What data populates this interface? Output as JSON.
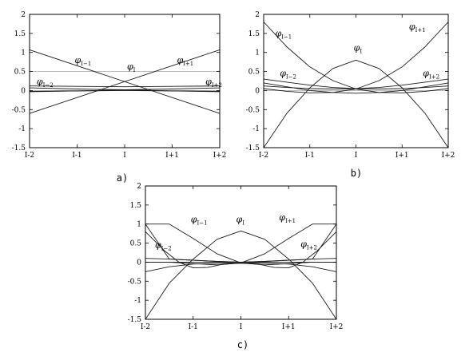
{
  "chart_data": [
    {
      "type": "line",
      "panel": "a",
      "caption": "a)",
      "x_ticks": [
        "I-2",
        "I-1",
        "I",
        "I+1",
        "I+2"
      ],
      "y_ticks": [
        "2",
        "1.5",
        "1",
        "0.5",
        "0",
        "-0.5",
        "-1",
        "-1.5"
      ],
      "xlim": [
        -2,
        2
      ],
      "ylim": [
        -1.5,
        2
      ],
      "reference_lines": [
        0,
        0.5
      ],
      "series": [
        {
          "name": "I-1",
          "x": [
            -2,
            2
          ],
          "y": [
            1.07,
            -0.6
          ]
        },
        {
          "name": "I+1",
          "x": [
            -2,
            2
          ],
          "y": [
            -0.6,
            1.07
          ]
        },
        {
          "name": "I",
          "x": [
            -2,
            -1,
            0,
            1,
            2
          ],
          "y": [
            -0.02,
            -0.01,
            0.0,
            -0.01,
            -0.02
          ]
        },
        {
          "name": "I-2",
          "x": [
            -2,
            -1,
            0,
            1,
            2
          ],
          "y": [
            0.07,
            0.04,
            0.02,
            -0.01,
            -0.03
          ]
        },
        {
          "name": "I+2",
          "x": [
            -2,
            -1,
            0,
            1,
            2
          ],
          "y": [
            -0.03,
            -0.01,
            0.02,
            0.04,
            0.07
          ]
        },
        {
          "name": "",
          "x": [
            -2,
            -1,
            0,
            1,
            2
          ],
          "y": [
            0.12,
            0.11,
            0.1,
            0.11,
            0.12
          ]
        }
      ],
      "labels": [
        {
          "text": "φ",
          "sub": "I−1",
          "x": -1.05,
          "y": 0.72
        },
        {
          "text": "φ",
          "sub": "I",
          "x": 0.05,
          "y": 0.55
        },
        {
          "text": "φ",
          "sub": "I+1",
          "x": 1.1,
          "y": 0.72
        },
        {
          "text": "φ",
          "sub": "I−2",
          "x": -1.85,
          "y": 0.16
        },
        {
          "text": "φ",
          "sub": "I+2",
          "x": 1.7,
          "y": 0.16
        }
      ]
    },
    {
      "type": "line",
      "panel": "b",
      "caption": "b)",
      "x_ticks": [
        "I-2",
        "I-1",
        "I",
        "I+1",
        "I+2"
      ],
      "y_ticks": [
        "2",
        "1.5",
        "1",
        "0.5",
        "0",
        "-0.5",
        "-1",
        "-1.5"
      ],
      "xlim": [
        -2,
        2
      ],
      "ylim": [
        -1.5,
        2
      ],
      "reference_lines": [
        0
      ],
      "series": [
        {
          "name": "I",
          "x": [
            -2,
            -1.5,
            -1,
            -0.5,
            0,
            0.5,
            1,
            1.5,
            2
          ],
          "y": [
            -1.5,
            -0.6,
            0.07,
            0.58,
            0.8,
            0.58,
            0.07,
            -0.6,
            -1.5
          ]
        },
        {
          "name": "I-1",
          "x": [
            -2,
            -1.5,
            -1,
            -0.5,
            0,
            0.5,
            1,
            1.5,
            2
          ],
          "y": [
            1.8,
            1.15,
            0.62,
            0.26,
            0.04,
            -0.05,
            -0.06,
            -0.02,
            0.05
          ]
        },
        {
          "name": "I+1",
          "x": [
            -2,
            -1.5,
            -1,
            -0.5,
            0,
            0.5,
            1,
            1.5,
            2
          ],
          "y": [
            0.05,
            -0.02,
            -0.06,
            -0.05,
            0.04,
            0.26,
            0.62,
            1.15,
            1.8
          ]
        },
        {
          "name": "I-2",
          "x": [
            -2,
            -1.5,
            -1,
            -0.5,
            0,
            0.5,
            1,
            1.5,
            2
          ],
          "y": [
            0.3,
            0.22,
            0.14,
            0.08,
            0.05,
            0.04,
            0.05,
            0.08,
            0.12
          ]
        },
        {
          "name": "I+2",
          "x": [
            -2,
            -1.5,
            -1,
            -0.5,
            0,
            0.5,
            1,
            1.5,
            2
          ],
          "y": [
            0.12,
            0.08,
            0.05,
            0.04,
            0.05,
            0.08,
            0.14,
            0.22,
            0.3
          ]
        },
        {
          "name": "",
          "x": [
            -2,
            -1.5,
            -1,
            -0.5,
            0,
            0.5,
            1,
            1.5,
            2
          ],
          "y": [
            0.2,
            0.1,
            0.0,
            -0.05,
            -0.07,
            -0.05,
            0.0,
            0.1,
            0.2
          ]
        }
      ],
      "labels": [
        {
          "text": "φ",
          "sub": "I−1",
          "x": -1.75,
          "y": 1.42
        },
        {
          "text": "φ",
          "sub": "I",
          "x": -0.05,
          "y": 1.05
        },
        {
          "text": "φ",
          "sub": "I+1",
          "x": 1.15,
          "y": 1.6
        },
        {
          "text": "φ",
          "sub": "I−2",
          "x": -1.65,
          "y": 0.38
        },
        {
          "text": "φ",
          "sub": "I+2",
          "x": 1.45,
          "y": 0.38
        }
      ]
    },
    {
      "type": "line",
      "panel": "c",
      "caption": "c)",
      "x_ticks": [
        "I-2",
        "I-1",
        "I",
        "I+1",
        "I+2"
      ],
      "y_ticks": [
        "2",
        "1.5",
        "1",
        "0.5",
        "0",
        "-0.5",
        "-1",
        "-1.5"
      ],
      "xlim": [
        -2,
        2
      ],
      "ylim": [
        -1.5,
        2
      ],
      "reference_lines": [
        0
      ],
      "series": [
        {
          "name": "I",
          "x": [
            -2,
            -1.5,
            -1,
            -0.5,
            0,
            0.5,
            1,
            1.5,
            2
          ],
          "y": [
            -1.5,
            -0.55,
            0.08,
            0.6,
            0.82,
            0.6,
            0.08,
            -0.55,
            -1.5
          ]
        },
        {
          "name": "I-1",
          "x": [
            -2,
            -1.5,
            -1,
            -0.5,
            0,
            0.5,
            1,
            1.5,
            2
          ],
          "y": [
            1.0,
            1.0,
            0.62,
            0.22,
            -0.02,
            -0.07,
            -0.04,
            0.0,
            0.0
          ]
        },
        {
          "name": "I+1",
          "x": [
            -2,
            -1.5,
            -1,
            -0.5,
            0,
            0.5,
            1,
            1.5,
            2
          ],
          "y": [
            0.0,
            0.0,
            -0.04,
            -0.07,
            -0.02,
            0.22,
            0.62,
            1.0,
            1.0
          ]
        },
        {
          "name": "",
          "x": [
            -2,
            -1.5,
            -1,
            -0.5,
            0,
            0.5,
            1,
            1.5,
            2
          ],
          "y": [
            1.0,
            0.08,
            0.05,
            0.02,
            0.0,
            0.02,
            0.05,
            0.08,
            0.1
          ]
        },
        {
          "name": "",
          "x": [
            -2,
            -1.5,
            -1,
            -0.5,
            0,
            0.5,
            1,
            1.5,
            2
          ],
          "y": [
            0.1,
            0.08,
            0.05,
            0.02,
            0.0,
            0.02,
            0.05,
            0.08,
            1.0
          ]
        },
        {
          "name": "I-2",
          "x": [
            -2,
            -1.6,
            -1.3,
            -1,
            -0.7,
            -0.4,
            0,
            0.5,
            1,
            1.5,
            2
          ],
          "y": [
            0.8,
            0.3,
            0.0,
            -0.15,
            -0.14,
            -0.06,
            -0.02,
            0.0,
            0.0,
            0.0,
            0.0
          ]
        },
        {
          "name": "I+2",
          "x": [
            -2,
            -1.5,
            -1,
            -0.5,
            0,
            0.4,
            0.7,
            1,
            1.3,
            1.6,
            2
          ],
          "y": [
            0.0,
            0.0,
            0.0,
            0.0,
            -0.02,
            -0.06,
            -0.14,
            -0.15,
            0.0,
            0.3,
            0.8
          ]
        },
        {
          "name": "",
          "x": [
            -2,
            -1.5,
            -1,
            -0.5,
            0,
            0.5,
            1,
            1.5,
            2
          ],
          "y": [
            -0.25,
            -0.12,
            -0.05,
            -0.03,
            -0.03,
            -0.03,
            -0.05,
            -0.12,
            -0.25
          ]
        }
      ],
      "labels": [
        {
          "text": "φ",
          "sub": "I−1",
          "x": -1.05,
          "y": 1.05
        },
        {
          "text": "φ",
          "sub": "I",
          "x": -0.1,
          "y": 1.05
        },
        {
          "text": "φ",
          "sub": "I+1",
          "x": 0.8,
          "y": 1.1
        },
        {
          "text": "φ",
          "sub": "I−2",
          "x": -1.8,
          "y": 0.38
        },
        {
          "text": "φ",
          "sub": "I+2",
          "x": 1.25,
          "y": 0.4
        }
      ]
    }
  ]
}
